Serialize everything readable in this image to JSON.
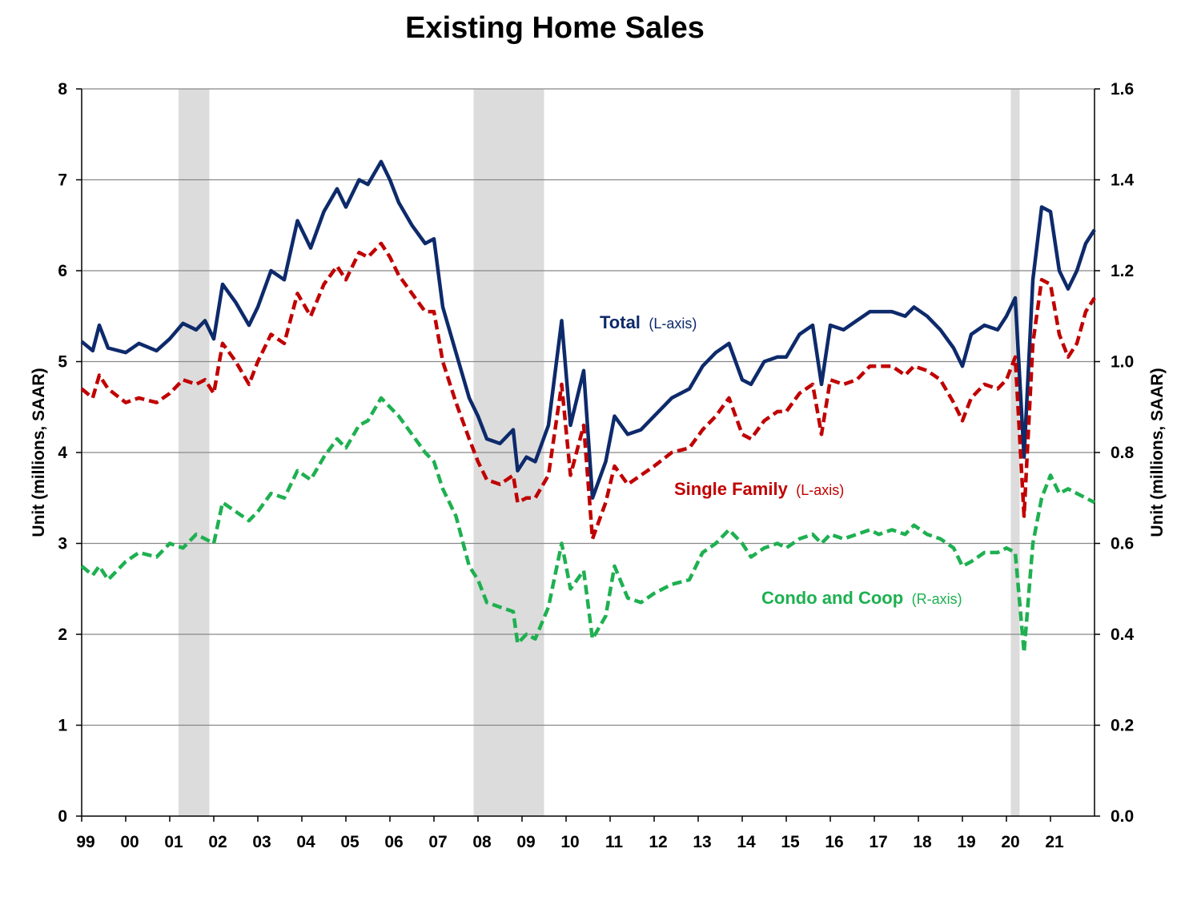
{
  "title": "Existing Home Sales",
  "colors": {
    "total": "#0d2a6b",
    "single": "#c00000",
    "condo": "#1eb050",
    "recession": "#dcdcdc",
    "grid": "#888888"
  },
  "chart_data": {
    "type": "line",
    "title": "Existing Home Sales",
    "x_ticks": [
      "99",
      "00",
      "01",
      "02",
      "03",
      "04",
      "05",
      "06",
      "07",
      "08",
      "09",
      "10",
      "11",
      "12",
      "13",
      "14",
      "15",
      "16",
      "17",
      "18",
      "19",
      "20",
      "21"
    ],
    "x_range": [
      1999.0,
      2022.0
    ],
    "left_axis": {
      "label": "Unit (millions, SAAR)",
      "ylim": [
        0,
        8
      ],
      "ticks": [
        "0",
        "1",
        "2",
        "3",
        "4",
        "5",
        "6",
        "7",
        "8"
      ]
    },
    "right_axis": {
      "label": "Unit (millions, SAAR)",
      "ylim": [
        0.0,
        1.6
      ],
      "ticks": [
        "0.0",
        "0.2",
        "0.4",
        "0.6",
        "0.8",
        "1.0",
        "1.2",
        "1.4",
        "1.6"
      ]
    },
    "recessions": [
      [
        2001.2,
        2001.9
      ],
      [
        2007.9,
        2009.5
      ],
      [
        2020.1,
        2020.3
      ]
    ],
    "grid": "horizontal",
    "series": [
      {
        "name": "Total",
        "axis_note": "(L-axis)",
        "axis": "left",
        "style": "solid",
        "points": [
          [
            1999.0,
            5.22
          ],
          [
            1999.25,
            5.12
          ],
          [
            1999.4,
            5.4
          ],
          [
            1999.6,
            5.15
          ],
          [
            2000.0,
            5.1
          ],
          [
            2000.3,
            5.2
          ],
          [
            2000.7,
            5.12
          ],
          [
            2001.0,
            5.25
          ],
          [
            2001.3,
            5.42
          ],
          [
            2001.6,
            5.35
          ],
          [
            2001.8,
            5.45
          ],
          [
            2002.0,
            5.25
          ],
          [
            2002.2,
            5.85
          ],
          [
            2002.5,
            5.65
          ],
          [
            2002.8,
            5.4
          ],
          [
            2003.0,
            5.6
          ],
          [
            2003.3,
            6.0
          ],
          [
            2003.6,
            5.9
          ],
          [
            2003.9,
            6.55
          ],
          [
            2004.2,
            6.25
          ],
          [
            2004.5,
            6.65
          ],
          [
            2004.8,
            6.9
          ],
          [
            2005.0,
            6.7
          ],
          [
            2005.3,
            7.0
          ],
          [
            2005.5,
            6.95
          ],
          [
            2005.8,
            7.2
          ],
          [
            2006.0,
            7.0
          ],
          [
            2006.2,
            6.75
          ],
          [
            2006.5,
            6.5
          ],
          [
            2006.8,
            6.3
          ],
          [
            2007.0,
            6.35
          ],
          [
            2007.2,
            5.6
          ],
          [
            2007.5,
            5.1
          ],
          [
            2007.8,
            4.6
          ],
          [
            2008.0,
            4.4
          ],
          [
            2008.2,
            4.15
          ],
          [
            2008.5,
            4.1
          ],
          [
            2008.8,
            4.25
          ],
          [
            2008.9,
            3.8
          ],
          [
            2009.1,
            3.95
          ],
          [
            2009.3,
            3.9
          ],
          [
            2009.6,
            4.3
          ],
          [
            2009.9,
            5.45
          ],
          [
            2010.1,
            4.3
          ],
          [
            2010.4,
            4.9
          ],
          [
            2010.6,
            3.5
          ],
          [
            2010.9,
            3.9
          ],
          [
            2011.1,
            4.4
          ],
          [
            2011.4,
            4.2
          ],
          [
            2011.7,
            4.25
          ],
          [
            2012.0,
            4.4
          ],
          [
            2012.4,
            4.6
          ],
          [
            2012.8,
            4.7
          ],
          [
            2013.1,
            4.95
          ],
          [
            2013.4,
            5.1
          ],
          [
            2013.7,
            5.2
          ],
          [
            2014.0,
            4.8
          ],
          [
            2014.2,
            4.75
          ],
          [
            2014.5,
            5.0
          ],
          [
            2014.8,
            5.05
          ],
          [
            2015.0,
            5.05
          ],
          [
            2015.3,
            5.3
          ],
          [
            2015.6,
            5.4
          ],
          [
            2015.8,
            4.75
          ],
          [
            2016.0,
            5.4
          ],
          [
            2016.3,
            5.35
          ],
          [
            2016.6,
            5.45
          ],
          [
            2016.9,
            5.55
          ],
          [
            2017.1,
            5.55
          ],
          [
            2017.4,
            5.55
          ],
          [
            2017.7,
            5.5
          ],
          [
            2017.9,
            5.6
          ],
          [
            2018.2,
            5.5
          ],
          [
            2018.5,
            5.35
          ],
          [
            2018.8,
            5.15
          ],
          [
            2019.0,
            4.95
          ],
          [
            2019.2,
            5.3
          ],
          [
            2019.5,
            5.4
          ],
          [
            2019.8,
            5.35
          ],
          [
            2020.0,
            5.5
          ],
          [
            2020.2,
            5.7
          ],
          [
            2020.4,
            3.95
          ],
          [
            2020.6,
            5.9
          ],
          [
            2020.8,
            6.7
          ],
          [
            2021.0,
            6.65
          ],
          [
            2021.2,
            6.0
          ],
          [
            2021.4,
            5.8
          ],
          [
            2021.6,
            6.0
          ],
          [
            2021.8,
            6.3
          ],
          [
            2022.0,
            6.45
          ]
        ]
      },
      {
        "name": "Single Family",
        "axis_note": "(L-axis)",
        "axis": "left",
        "style": "dashed",
        "points": [
          [
            1999.0,
            4.7
          ],
          [
            1999.25,
            4.6
          ],
          [
            1999.4,
            4.85
          ],
          [
            1999.6,
            4.7
          ],
          [
            2000.0,
            4.55
          ],
          [
            2000.3,
            4.6
          ],
          [
            2000.7,
            4.55
          ],
          [
            2001.0,
            4.65
          ],
          [
            2001.3,
            4.8
          ],
          [
            2001.6,
            4.75
          ],
          [
            2001.8,
            4.8
          ],
          [
            2002.0,
            4.65
          ],
          [
            2002.2,
            5.2
          ],
          [
            2002.5,
            5.0
          ],
          [
            2002.8,
            4.75
          ],
          [
            2003.0,
            5.0
          ],
          [
            2003.3,
            5.3
          ],
          [
            2003.6,
            5.2
          ],
          [
            2003.9,
            5.75
          ],
          [
            2004.2,
            5.5
          ],
          [
            2004.5,
            5.85
          ],
          [
            2004.8,
            6.05
          ],
          [
            2005.0,
            5.9
          ],
          [
            2005.3,
            6.2
          ],
          [
            2005.5,
            6.15
          ],
          [
            2005.8,
            6.3
          ],
          [
            2006.0,
            6.15
          ],
          [
            2006.2,
            5.95
          ],
          [
            2006.5,
            5.75
          ],
          [
            2006.8,
            5.55
          ],
          [
            2007.0,
            5.55
          ],
          [
            2007.2,
            5.0
          ],
          [
            2007.5,
            4.55
          ],
          [
            2007.8,
            4.15
          ],
          [
            2008.0,
            3.9
          ],
          [
            2008.2,
            3.7
          ],
          [
            2008.5,
            3.65
          ],
          [
            2008.8,
            3.75
          ],
          [
            2008.9,
            3.45
          ],
          [
            2009.1,
            3.5
          ],
          [
            2009.3,
            3.5
          ],
          [
            2009.6,
            3.75
          ],
          [
            2009.9,
            4.75
          ],
          [
            2010.1,
            3.75
          ],
          [
            2010.4,
            4.3
          ],
          [
            2010.6,
            3.05
          ],
          [
            2010.9,
            3.45
          ],
          [
            2011.1,
            3.85
          ],
          [
            2011.4,
            3.65
          ],
          [
            2011.7,
            3.75
          ],
          [
            2012.0,
            3.85
          ],
          [
            2012.4,
            4.0
          ],
          [
            2012.8,
            4.05
          ],
          [
            2013.1,
            4.25
          ],
          [
            2013.4,
            4.4
          ],
          [
            2013.7,
            4.6
          ],
          [
            2014.0,
            4.2
          ],
          [
            2014.2,
            4.15
          ],
          [
            2014.5,
            4.35
          ],
          [
            2014.8,
            4.45
          ],
          [
            2015.0,
            4.45
          ],
          [
            2015.3,
            4.65
          ],
          [
            2015.6,
            4.75
          ],
          [
            2015.8,
            4.2
          ],
          [
            2016.0,
            4.8
          ],
          [
            2016.3,
            4.75
          ],
          [
            2016.6,
            4.8
          ],
          [
            2016.9,
            4.95
          ],
          [
            2017.1,
            4.95
          ],
          [
            2017.4,
            4.95
          ],
          [
            2017.7,
            4.85
          ],
          [
            2017.9,
            4.95
          ],
          [
            2018.2,
            4.9
          ],
          [
            2018.5,
            4.8
          ],
          [
            2018.8,
            4.55
          ],
          [
            2019.0,
            4.35
          ],
          [
            2019.2,
            4.6
          ],
          [
            2019.5,
            4.75
          ],
          [
            2019.8,
            4.7
          ],
          [
            2020.0,
            4.8
          ],
          [
            2020.2,
            5.05
          ],
          [
            2020.4,
            3.3
          ],
          [
            2020.6,
            5.2
          ],
          [
            2020.8,
            5.9
          ],
          [
            2021.0,
            5.85
          ],
          [
            2021.2,
            5.3
          ],
          [
            2021.4,
            5.05
          ],
          [
            2021.6,
            5.2
          ],
          [
            2021.8,
            5.55
          ],
          [
            2022.0,
            5.7
          ]
        ]
      },
      {
        "name": "Condo and Coop",
        "axis_note": "(R-axis)",
        "axis": "right",
        "style": "dashed",
        "points": [
          [
            1999.0,
            0.55
          ],
          [
            1999.25,
            0.53
          ],
          [
            1999.4,
            0.55
          ],
          [
            1999.6,
            0.52
          ],
          [
            2000.0,
            0.56
          ],
          [
            2000.3,
            0.58
          ],
          [
            2000.7,
            0.57
          ],
          [
            2001.0,
            0.6
          ],
          [
            2001.3,
            0.59
          ],
          [
            2001.6,
            0.62
          ],
          [
            2001.8,
            0.61
          ],
          [
            2002.0,
            0.6
          ],
          [
            2002.2,
            0.69
          ],
          [
            2002.5,
            0.67
          ],
          [
            2002.8,
            0.65
          ],
          [
            2003.0,
            0.67
          ],
          [
            2003.3,
            0.71
          ],
          [
            2003.6,
            0.7
          ],
          [
            2003.9,
            0.76
          ],
          [
            2004.2,
            0.74
          ],
          [
            2004.5,
            0.79
          ],
          [
            2004.8,
            0.83
          ],
          [
            2005.0,
            0.81
          ],
          [
            2005.3,
            0.86
          ],
          [
            2005.5,
            0.87
          ],
          [
            2005.8,
            0.92
          ],
          [
            2006.0,
            0.9
          ],
          [
            2006.2,
            0.88
          ],
          [
            2006.5,
            0.84
          ],
          [
            2006.8,
            0.8
          ],
          [
            2007.0,
            0.78
          ],
          [
            2007.2,
            0.72
          ],
          [
            2007.5,
            0.66
          ],
          [
            2007.8,
            0.55
          ],
          [
            2008.0,
            0.52
          ],
          [
            2008.2,
            0.47
          ],
          [
            2008.5,
            0.46
          ],
          [
            2008.8,
            0.45
          ],
          [
            2008.9,
            0.38
          ],
          [
            2009.1,
            0.4
          ],
          [
            2009.3,
            0.39
          ],
          [
            2009.6,
            0.46
          ],
          [
            2009.9,
            0.6
          ],
          [
            2010.1,
            0.5
          ],
          [
            2010.4,
            0.54
          ],
          [
            2010.6,
            0.39
          ],
          [
            2010.9,
            0.44
          ],
          [
            2011.1,
            0.55
          ],
          [
            2011.4,
            0.48
          ],
          [
            2011.7,
            0.47
          ],
          [
            2012.0,
            0.49
          ],
          [
            2012.4,
            0.51
          ],
          [
            2012.8,
            0.52
          ],
          [
            2013.1,
            0.58
          ],
          [
            2013.4,
            0.6
          ],
          [
            2013.7,
            0.63
          ],
          [
            2014.0,
            0.6
          ],
          [
            2014.2,
            0.57
          ],
          [
            2014.5,
            0.59
          ],
          [
            2014.8,
            0.6
          ],
          [
            2015.0,
            0.59
          ],
          [
            2015.3,
            0.61
          ],
          [
            2015.6,
            0.62
          ],
          [
            2015.8,
            0.6
          ],
          [
            2016.0,
            0.62
          ],
          [
            2016.3,
            0.61
          ],
          [
            2016.6,
            0.62
          ],
          [
            2016.9,
            0.63
          ],
          [
            2017.1,
            0.62
          ],
          [
            2017.4,
            0.63
          ],
          [
            2017.7,
            0.62
          ],
          [
            2017.9,
            0.64
          ],
          [
            2018.2,
            0.62
          ],
          [
            2018.5,
            0.61
          ],
          [
            2018.8,
            0.59
          ],
          [
            2019.0,
            0.55
          ],
          [
            2019.2,
            0.56
          ],
          [
            2019.5,
            0.58
          ],
          [
            2019.8,
            0.58
          ],
          [
            2020.0,
            0.59
          ],
          [
            2020.2,
            0.58
          ],
          [
            2020.4,
            0.36
          ],
          [
            2020.6,
            0.6
          ],
          [
            2020.8,
            0.7
          ],
          [
            2021.0,
            0.75
          ],
          [
            2021.2,
            0.71
          ],
          [
            2021.4,
            0.72
          ],
          [
            2021.6,
            0.71
          ],
          [
            2021.8,
            0.7
          ],
          [
            2022.0,
            0.69
          ]
        ]
      }
    ]
  }
}
